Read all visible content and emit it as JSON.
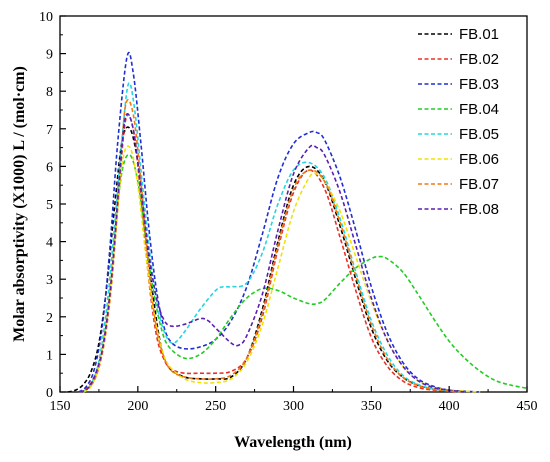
{
  "chart_data": {
    "type": "line",
    "title": "",
    "xlabel": "Wavelength (nm)",
    "ylabel": "Molar absorptivity (X1000) L / (mol·cm)",
    "xlim": [
      150,
      450
    ],
    "ylim": [
      0,
      10
    ],
    "xticks": [
      150,
      200,
      250,
      300,
      350,
      400,
      450
    ],
    "yticks": [
      0,
      1,
      2,
      3,
      4,
      5,
      6,
      7,
      8,
      9,
      10
    ],
    "grid": false,
    "legend_position": "top-right",
    "series": [
      {
        "name": "FB.01",
        "color": "#000000",
        "dashed": true,
        "x": [
          155,
          160,
          165,
          170,
          175,
          180,
          185,
          190,
          195,
          200,
          205,
          210,
          215,
          220,
          230,
          240,
          250,
          260,
          270,
          280,
          290,
          300,
          310,
          320,
          330,
          340,
          350,
          360,
          370,
          380,
          390,
          400,
          410,
          420
        ],
        "y": [
          0,
          0.05,
          0.2,
          0.55,
          1.3,
          2.8,
          4.9,
          6.7,
          7.0,
          6.1,
          4.3,
          2.5,
          1.2,
          0.65,
          0.4,
          0.35,
          0.35,
          0.4,
          0.9,
          2.2,
          4.0,
          5.5,
          6.0,
          5.6,
          4.4,
          3.0,
          1.7,
          0.85,
          0.4,
          0.18,
          0.08,
          0.03,
          0.01,
          0
        ]
      },
      {
        "name": "FB.02",
        "color": "#e8302a",
        "dashed": true,
        "x": [
          162,
          167,
          172,
          177,
          182,
          187,
          192,
          197,
          202,
          207,
          212,
          217,
          222,
          230,
          240,
          250,
          260,
          270,
          280,
          290,
          300,
          310,
          320,
          330,
          340,
          350,
          360,
          370,
          380,
          390,
          400,
          410
        ],
        "y": [
          0,
          0.1,
          0.4,
          1.1,
          2.6,
          4.9,
          7.2,
          7.0,
          5.2,
          3.0,
          1.5,
          0.85,
          0.6,
          0.5,
          0.5,
          0.5,
          0.55,
          0.9,
          2.0,
          3.8,
          5.3,
          5.9,
          5.4,
          4.1,
          2.7,
          1.45,
          0.7,
          0.3,
          0.12,
          0.05,
          0.02,
          0
        ]
      },
      {
        "name": "FB.03",
        "color": "#1f2fd1",
        "dashed": true,
        "x": [
          162,
          167,
          172,
          177,
          182,
          187,
          193,
          197,
          202,
          207,
          212,
          217,
          222,
          230,
          240,
          250,
          260,
          270,
          280,
          290,
          300,
          310,
          315,
          320,
          330,
          340,
          350,
          360,
          370,
          380,
          390,
          400,
          410,
          420
        ],
        "y": [
          0,
          0.15,
          0.6,
          1.7,
          3.8,
          6.6,
          8.9,
          8.5,
          6.6,
          4.4,
          2.7,
          1.7,
          1.3,
          1.15,
          1.2,
          1.4,
          1.9,
          2.8,
          4.2,
          5.7,
          6.6,
          6.9,
          6.9,
          6.7,
          5.7,
          4.3,
          2.8,
          1.6,
          0.8,
          0.35,
          0.15,
          0.05,
          0.02,
          0
        ]
      },
      {
        "name": "FB.04",
        "color": "#22cc22",
        "dashed": true,
        "x": [
          165,
          170,
          175,
          180,
          185,
          190,
          195,
          200,
          205,
          210,
          215,
          220,
          230,
          240,
          250,
          260,
          270,
          280,
          290,
          300,
          310,
          315,
          320,
          330,
          340,
          350,
          355,
          360,
          370,
          380,
          390,
          400,
          410,
          420,
          430,
          440,
          450
        ],
        "y": [
          0,
          0.2,
          0.8,
          2.2,
          4.2,
          5.9,
          6.3,
          5.6,
          4.1,
          2.7,
          1.7,
          1.2,
          0.9,
          1.0,
          1.4,
          2.0,
          2.5,
          2.75,
          2.7,
          2.5,
          2.35,
          2.35,
          2.45,
          2.9,
          3.3,
          3.55,
          3.6,
          3.55,
          3.2,
          2.6,
          1.95,
          1.35,
          0.9,
          0.55,
          0.3,
          0.18,
          0.1
        ]
      },
      {
        "name": "FB.05",
        "color": "#22d6e0",
        "dashed": true,
        "x": [
          165,
          170,
          175,
          180,
          185,
          190,
          194,
          198,
          203,
          208,
          213,
          218,
          223,
          230,
          240,
          250,
          255,
          260,
          270,
          280,
          290,
          300,
          310,
          320,
          330,
          340,
          350,
          360,
          370,
          380,
          390,
          400,
          410
        ],
        "y": [
          0,
          0.2,
          0.8,
          2.2,
          4.4,
          6.8,
          8.2,
          7.5,
          5.5,
          3.6,
          2.2,
          1.5,
          1.3,
          1.6,
          2.2,
          2.7,
          2.8,
          2.8,
          2.9,
          3.7,
          5.0,
          5.9,
          6.1,
          5.7,
          4.6,
          3.2,
          1.9,
          1.0,
          0.45,
          0.2,
          0.08,
          0.03,
          0
        ]
      },
      {
        "name": "FB.06",
        "color": "#f2e200",
        "dashed": true,
        "x": [
          165,
          170,
          175,
          180,
          185,
          190,
          195,
          200,
          205,
          210,
          215,
          220,
          230,
          240,
          250,
          260,
          270,
          280,
          290,
          300,
          310,
          315,
          320,
          330,
          340,
          350,
          360,
          370,
          380,
          390,
          400,
          410,
          420
        ],
        "y": [
          0,
          0.15,
          0.7,
          1.9,
          3.9,
          6.1,
          6.5,
          5.5,
          3.7,
          2.2,
          1.2,
          0.7,
          0.35,
          0.25,
          0.25,
          0.35,
          0.8,
          1.8,
          3.3,
          4.8,
          5.7,
          5.8,
          5.6,
          4.8,
          3.6,
          2.4,
          1.4,
          0.7,
          0.3,
          0.12,
          0.05,
          0.02,
          0
        ]
      },
      {
        "name": "FB.07",
        "color": "#f07a10",
        "dashed": true,
        "x": [
          163,
          168,
          173,
          178,
          183,
          188,
          192,
          197,
          202,
          207,
          212,
          217,
          222,
          230,
          240,
          250,
          260,
          270,
          280,
          290,
          300,
          310,
          320,
          330,
          340,
          350,
          360,
          370,
          380,
          390,
          400,
          410
        ],
        "y": [
          0,
          0.1,
          0.4,
          1.2,
          2.8,
          5.4,
          7.6,
          7.4,
          5.6,
          3.3,
          1.7,
          0.9,
          0.55,
          0.4,
          0.35,
          0.35,
          0.45,
          0.9,
          2.1,
          3.9,
          5.4,
          5.9,
          5.6,
          4.5,
          3.1,
          1.8,
          0.9,
          0.4,
          0.17,
          0.07,
          0.03,
          0
        ]
      },
      {
        "name": "FB.08",
        "color": "#5a1fb0",
        "dashed": true,
        "x": [
          163,
          168,
          173,
          178,
          183,
          188,
          192,
          197,
          202,
          207,
          212,
          217,
          222,
          230,
          240,
          245,
          250,
          260,
          265,
          270,
          280,
          290,
          300,
          310,
          315,
          320,
          330,
          340,
          350,
          360,
          370,
          380,
          390,
          400,
          410
        ],
        "y": [
          0,
          0.1,
          0.5,
          1.3,
          3.0,
          5.6,
          7.3,
          7.0,
          5.4,
          3.7,
          2.5,
          1.9,
          1.75,
          1.8,
          1.95,
          1.9,
          1.7,
          1.3,
          1.25,
          1.5,
          2.6,
          4.3,
          5.8,
          6.5,
          6.5,
          6.3,
          5.3,
          3.9,
          2.5,
          1.4,
          0.7,
          0.3,
          0.12,
          0.05,
          0
        ]
      }
    ]
  }
}
